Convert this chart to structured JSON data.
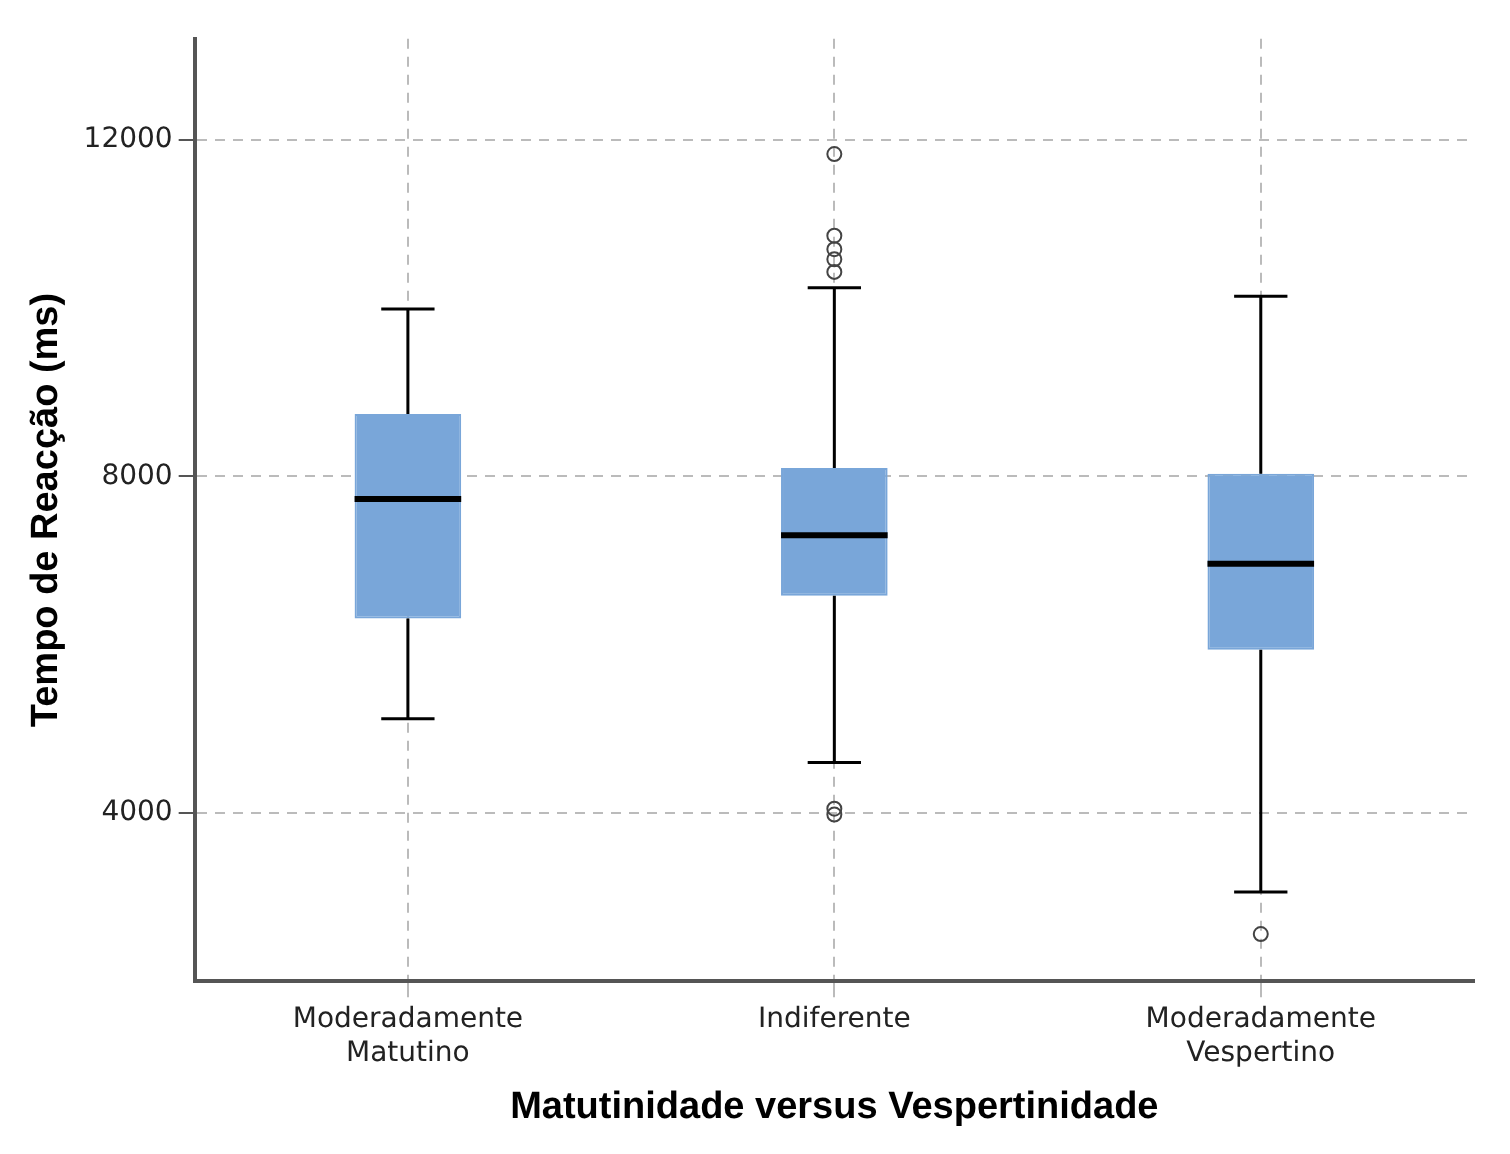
{
  "chart_data": {
    "type": "box",
    "xlabel": "Matutinidade versus Vespertinidade",
    "ylabel": "Tempo de Reacção (ms)",
    "categories": [
      "Moderadamente Matutino",
      "Indiferente",
      "Moderadamente Vespertino"
    ],
    "color": "#79a6d9",
    "boxes": [
      {
        "low": 5120,
        "q1": 6310,
        "median": 7730,
        "q3": 8740,
        "high": 9990
      },
      {
        "low": 4600,
        "q1": 6580,
        "median": 7300,
        "q3": 8100,
        "high": 10240,
        "outliers": [
          11830,
          10860,
          10700,
          10580,
          10430,
          4050,
          3980
        ]
      },
      {
        "low": 3060,
        "q1": 5940,
        "median": 6960,
        "q3": 8030,
        "high": 10140,
        "outliers": [
          2560
        ]
      }
    ],
    "ylim": [
      2000,
      13200
    ],
    "yticks": [
      4000,
      8000,
      12000
    ],
    "grid": true,
    "legend": false
  }
}
